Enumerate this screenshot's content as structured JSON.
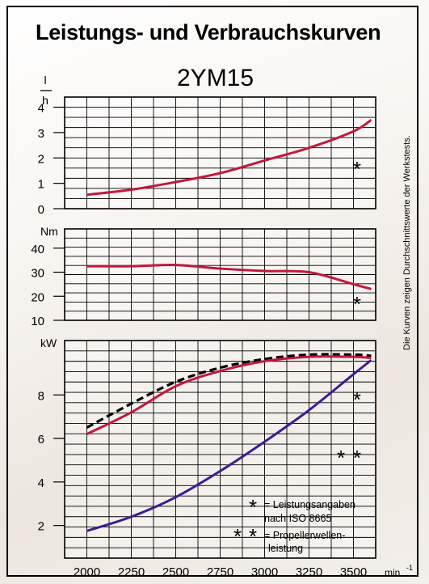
{
  "title": "Leistungs- und Verbrauchskurven",
  "model": "2YM15",
  "side_note": "Die Kurven zeigen Durchschnittswerte der Werkstests.",
  "colors": {
    "red": "#c2183a",
    "blue": "#3b1e8f",
    "dashed": "#000000"
  },
  "legend": {
    "single_star_text": "= Leistungsangaben",
    "single_star_text2": "nach ISO 8665",
    "double_star_text": "= Propellerwellen-",
    "double_star_text2": "leistung"
  },
  "x_axis": {
    "unit": "min",
    "unit_sup": "-1",
    "ticks": [
      "2000",
      "2250",
      "2500",
      "2750",
      "3000",
      "3250",
      "3500"
    ]
  },
  "chart_data": [
    {
      "type": "line",
      "panel": "fuel",
      "ylabel": "l/h",
      "ylabel_top": "l",
      "ylabel_bottom": "h",
      "ylim": [
        0,
        4.4
      ],
      "yticks": [
        "0",
        "1",
        "2",
        "3",
        "4"
      ],
      "marker": "*",
      "series": [
        {
          "x": [
            2000,
            2250,
            2500,
            2750,
            3000,
            3250,
            3500,
            3600
          ],
          "y": [
            0.55,
            0.75,
            1.05,
            1.4,
            1.9,
            2.4,
            3.05,
            3.5
          ]
        }
      ]
    },
    {
      "type": "line",
      "panel": "torque",
      "ylabel": "Nm",
      "ylim": [
        10,
        48
      ],
      "yticks": [
        "10",
        "20",
        "30",
        "40"
      ],
      "marker": "*",
      "series": [
        {
          "x": [
            2000,
            2250,
            2500,
            2750,
            3000,
            3250,
            3500,
            3600
          ],
          "y": [
            32.5,
            32.5,
            33,
            31.5,
            30.5,
            30,
            25,
            23
          ]
        }
      ]
    },
    {
      "type": "line",
      "panel": "power",
      "ylabel": "kW",
      "ylim": [
        0.5,
        10.5
      ],
      "yticks": [
        "2",
        "4",
        "6",
        "8"
      ],
      "series": [
        {
          "style": "dashed",
          "marker": "*",
          "x": [
            2000,
            2250,
            2500,
            2750,
            3000,
            3250,
            3500,
            3600
          ],
          "y": [
            6.5,
            7.6,
            8.6,
            9.25,
            9.65,
            9.85,
            9.85,
            9.8
          ]
        },
        {
          "style": "red",
          "marker": "*",
          "x": [
            2000,
            2250,
            2500,
            2750,
            3000,
            3250,
            3500,
            3600
          ],
          "y": [
            6.2,
            7.2,
            8.4,
            9.1,
            9.55,
            9.75,
            9.75,
            9.7
          ]
        },
        {
          "style": "blue",
          "marker": "**",
          "x": [
            2000,
            2250,
            2500,
            2750,
            3000,
            3250,
            3500,
            3600
          ],
          "y": [
            1.75,
            2.4,
            3.3,
            4.5,
            5.85,
            7.3,
            8.95,
            9.6
          ]
        }
      ]
    }
  ]
}
